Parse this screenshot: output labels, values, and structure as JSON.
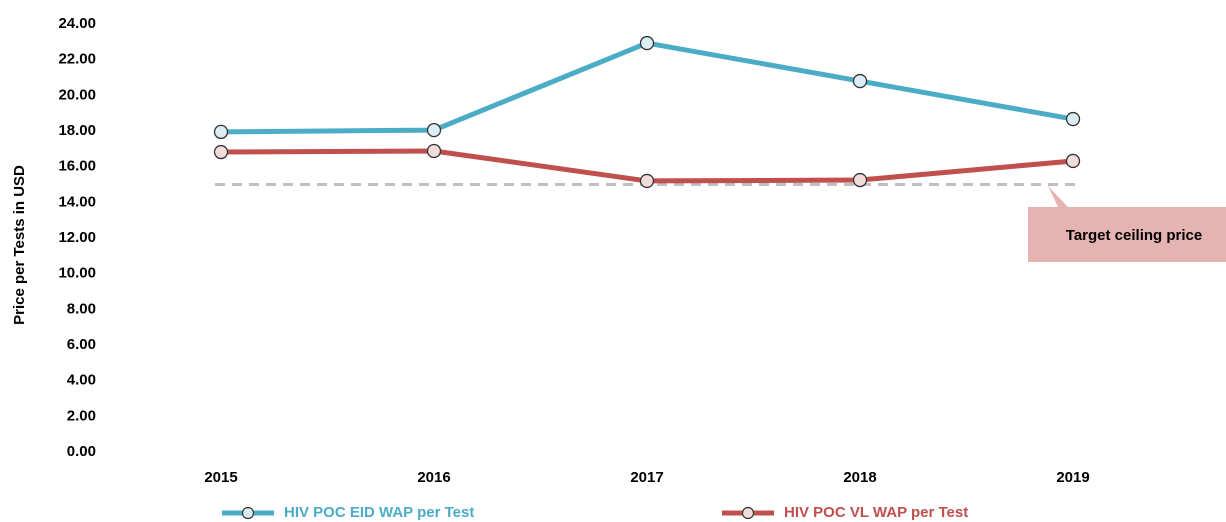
{
  "chart_data": {
    "type": "line",
    "y_label": "Price per Tests in USD",
    "categories": [
      "2015",
      "2016",
      "2017",
      "2018",
      "2019"
    ],
    "series": [
      {
        "name": "HIV POC EID WAP per Test",
        "color": "#4bacc6",
        "values": [
          17.95,
          18.05,
          22.93,
          20.8,
          18.67
        ]
      },
      {
        "name": "HIV POC VL WAP per Test",
        "color": "#c0504d",
        "values": [
          16.82,
          16.88,
          15.2,
          15.25,
          16.32
        ]
      }
    ],
    "target_line": {
      "value": 15,
      "label": "Target ceiling price",
      "color": "#bfbfbf"
    },
    "ylim": [
      0,
      24
    ],
    "yticks": [
      {
        "value": 0,
        "label": "0.00"
      },
      {
        "value": 2,
        "label": "2.00"
      },
      {
        "value": 4,
        "label": "4.00"
      },
      {
        "value": 6,
        "label": "6.00"
      },
      {
        "value": 8,
        "label": "8.00"
      },
      {
        "value": 10,
        "label": "10.00"
      },
      {
        "value": 12,
        "label": "12.00"
      },
      {
        "value": 14,
        "label": "14.00"
      },
      {
        "value": 16,
        "label": "16.00"
      },
      {
        "value": 18,
        "label": "18.00"
      },
      {
        "value": 20,
        "label": "20.00"
      },
      {
        "value": 22,
        "label": "22.00"
      },
      {
        "value": 24,
        "label": "24.00"
      }
    ],
    "grid": false,
    "legend": "bottom"
  }
}
